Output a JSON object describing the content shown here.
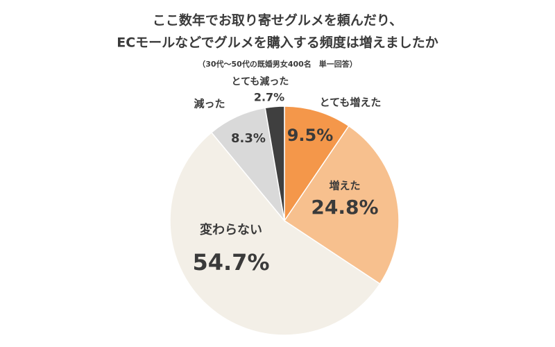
{
  "chart_data": {
    "type": "pie",
    "title": [
      "ここ数年でお取り寄せグルメを頼んだり、",
      "ECモールなどでグルメを購入する頻度は増えましたか"
    ],
    "subtitle": "（30代〜50代の既婚男女400名　単一回答）",
    "categories": [
      "とても増えた",
      "増えた",
      "変わらない",
      "減った",
      "とても減った"
    ],
    "values": [
      9.5,
      24.8,
      54.7,
      8.3,
      2.7
    ],
    "value_labels": [
      "9.5%",
      "24.8%",
      "54.7%",
      "8.3%",
      "2.7%"
    ],
    "colors": [
      "#f4974a",
      "#f7c08e",
      "#f3efe7",
      "#d9d9d9",
      "#3f3f3f"
    ]
  }
}
